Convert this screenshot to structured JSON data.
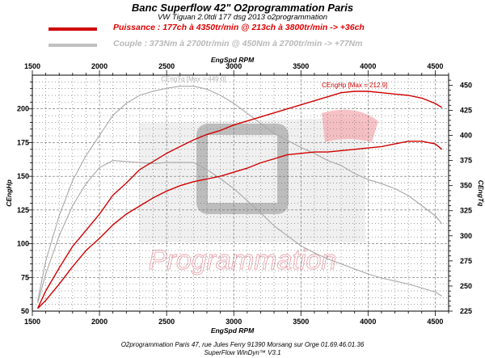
{
  "title": "Banc Superflow 42\" O2programmation Paris",
  "subtitle": "VW Tiguan 2.0tdi 177 dsg 2013 o2programmation",
  "legend": [
    {
      "label": "Puissance : 177ch à 4350tr/min @ 213ch à 3800tr/min  -> +36ch",
      "color": "#d00000"
    },
    {
      "label": "Couple :  373Nm à 2700tr/min @ 450Nm à 2700tr/min -> +77Nm",
      "color": "#c0c0c0"
    }
  ],
  "footer": {
    "line1": "O2programmation Paris 47, rue Jules Ferry 91390 Morsang sur Orge 01.69.46.01.36",
    "line2": "SuperFlow WinDyn™ V3.1"
  },
  "watermark": "Programmation",
  "colors": {
    "power": "#d00000",
    "torque": "#a8a8a8",
    "grid": "#555555"
  },
  "chart_data": {
    "type": "line",
    "xlabel": "EngSpd RPM",
    "ylabel_left": "CEngHp",
    "ylabel_right": "CEngTq",
    "xlim": [
      1500,
      4600
    ],
    "ylim_left": [
      50,
      225
    ],
    "ylim_right": [
      225,
      460
    ],
    "xticks": [
      1500,
      2000,
      2500,
      3000,
      3500,
      4000,
      4500
    ],
    "yticks_left": [
      50,
      75,
      100,
      125,
      150,
      175,
      200
    ],
    "yticks_right": [
      225,
      250,
      275,
      300,
      325,
      350,
      375,
      400,
      425,
      450
    ],
    "annotations": [
      {
        "text": "CEngHp [Max = 212.9]",
        "series": "power_mod"
      },
      {
        "text": "CEngTq [Max = 449.0]",
        "series": "torque_mod"
      }
    ],
    "series": [
      {
        "id": "power_mod",
        "axis": "left",
        "color": "#d00000",
        "x": [
          1540,
          1600,
          1700,
          1800,
          1900,
          2000,
          2100,
          2200,
          2300,
          2400,
          2500,
          2600,
          2700,
          2800,
          2900,
          3000,
          3100,
          3200,
          3300,
          3400,
          3500,
          3600,
          3700,
          3800,
          3900,
          4000,
          4100,
          4200,
          4300,
          4400,
          4500,
          4550
        ],
        "values": [
          52,
          65,
          82,
          98,
          110,
          122,
          136,
          145,
          155,
          161,
          167,
          172,
          177,
          181,
          184,
          188,
          191,
          194,
          197,
          200,
          203,
          206,
          209,
          212,
          213,
          213,
          212,
          211,
          210,
          208,
          204,
          201
        ]
      },
      {
        "id": "power_stock",
        "axis": "left",
        "color": "#d00000",
        "x": [
          1540,
          1600,
          1700,
          1800,
          1900,
          2000,
          2100,
          2200,
          2300,
          2400,
          2500,
          2600,
          2700,
          2800,
          2900,
          3000,
          3100,
          3200,
          3300,
          3400,
          3500,
          3600,
          3700,
          3800,
          3900,
          4000,
          4100,
          4200,
          4300,
          4400,
          4500,
          4550
        ],
        "values": [
          52,
          58,
          70,
          83,
          95,
          104,
          114,
          122,
          128,
          134,
          139,
          143,
          146,
          148,
          150,
          153,
          156,
          160,
          163,
          166,
          167,
          168,
          168,
          169,
          170,
          171,
          172,
          174,
          176,
          176,
          174,
          170
        ]
      },
      {
        "id": "torque_mod",
        "axis": "right",
        "color": "#a8a8a8",
        "x": [
          1540,
          1600,
          1700,
          1800,
          1900,
          2000,
          2100,
          2200,
          2300,
          2400,
          2500,
          2600,
          2700,
          2800,
          2900,
          3000,
          3100,
          3200,
          3300,
          3400,
          3500,
          3600,
          3700,
          3800,
          3900,
          4000,
          4100,
          4200,
          4300,
          4400,
          4500,
          4550
        ],
        "values": [
          235,
          275,
          320,
          355,
          380,
          400,
          420,
          432,
          440,
          444,
          447,
          449,
          449,
          446,
          440,
          432,
          422,
          412,
          402,
          395,
          388,
          382,
          375,
          370,
          362,
          356,
          352,
          347,
          340,
          330,
          320,
          312
        ]
      },
      {
        "id": "torque_stock",
        "axis": "right",
        "color": "#a8a8a8",
        "x": [
          1540,
          1600,
          1700,
          1800,
          1900,
          2000,
          2100,
          2200,
          2300,
          2400,
          2500,
          2600,
          2700,
          2800,
          2900,
          3000,
          3100,
          3200,
          3300,
          3400,
          3500,
          3600,
          3700,
          3800,
          3900,
          4000,
          4100,
          4200,
          4300,
          4400,
          4500,
          4550
        ],
        "values": [
          233,
          262,
          300,
          330,
          352,
          368,
          375,
          374,
          373,
          372,
          373,
          373,
          373,
          366,
          357,
          347,
          335,
          323,
          310,
          300,
          290,
          283,
          277,
          272,
          267,
          262,
          258,
          255,
          252,
          248,
          244,
          240
        ]
      }
    ]
  }
}
